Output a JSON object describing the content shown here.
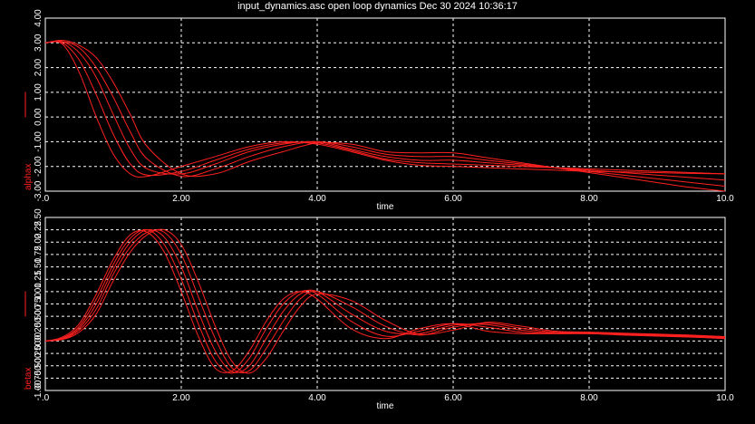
{
  "title": "input_dynamics.asc open loop dynamics  Dec 30 2024 10:36:17",
  "colors": {
    "background": "#000000",
    "axis": "#ffffff",
    "grid": "#ffffff",
    "trace": "#ff2020",
    "ylabel": "#ff2020",
    "text": "#ffffff"
  },
  "chart_data": [
    {
      "type": "line",
      "xlabel": "time",
      "ylabel": "alphax",
      "xlim": [
        0,
        10
      ],
      "ylim": [
        -3.0,
        4.0
      ],
      "xticks": [
        0,
        2,
        4,
        6,
        8,
        10
      ],
      "xtick_labels": [
        ".0",
        "2.00",
        "4.00",
        "6.00",
        "8.00",
        "10.0"
      ],
      "yticks": [
        -3.0,
        -2.0,
        -1.0,
        0.0,
        1.0,
        2.0,
        3.0,
        4.0
      ],
      "ytick_labels": [
        "-3.00",
        "-2.00",
        "-1.00",
        "0.00",
        "1.00",
        "2.00",
        "3.00",
        "4.00"
      ],
      "grid": true,
      "series": [
        {
          "x": [
            0,
            0.25,
            0.5,
            0.75,
            1,
            1.25,
            1.5,
            2,
            2.5,
            3,
            3.5,
            4,
            4.5,
            5,
            5.5,
            6,
            6.5,
            7,
            7.5,
            8,
            8.5,
            9,
            9.5,
            10
          ],
          "y": [
            3.0,
            2.95,
            1.8,
            0.0,
            -1.5,
            -2.3,
            -2.4,
            -2.0,
            -1.6,
            -1.2,
            -1.0,
            -1.1,
            -1.4,
            -1.75,
            -1.95,
            -2.0,
            -2.05,
            -2.1,
            -2.15,
            -2.2,
            -2.22,
            -2.25,
            -2.28,
            -2.3
          ]
        },
        {
          "x": [
            0,
            0.25,
            0.5,
            0.75,
            1,
            1.25,
            1.5,
            2,
            2.5,
            3,
            3.5,
            4,
            4.5,
            5,
            5.5,
            6,
            6.5,
            7,
            7.5,
            8,
            8.5,
            9,
            9.5,
            10
          ],
          "y": [
            3.0,
            3.0,
            2.3,
            0.9,
            -0.7,
            -1.9,
            -2.35,
            -2.2,
            -1.75,
            -1.3,
            -1.05,
            -1.05,
            -1.35,
            -1.7,
            -1.85,
            -1.9,
            -1.95,
            -2.0,
            -2.05,
            -2.1,
            -2.15,
            -2.2,
            -2.25,
            -2.3
          ]
        },
        {
          "x": [
            0,
            0.25,
            0.5,
            0.75,
            1,
            1.25,
            1.5,
            2,
            2.5,
            3,
            3.5,
            4,
            4.5,
            5,
            5.5,
            6,
            6.5,
            7,
            7.5,
            8,
            8.5,
            9,
            9.5,
            10
          ],
          "y": [
            3.0,
            3.05,
            2.6,
            1.6,
            0.1,
            -1.3,
            -2.1,
            -2.3,
            -1.9,
            -1.4,
            -1.1,
            -1.0,
            -1.3,
            -1.6,
            -1.75,
            -1.75,
            -1.85,
            -1.95,
            -2.05,
            -2.15,
            -2.25,
            -2.35,
            -2.45,
            -2.55
          ]
        },
        {
          "x": [
            0,
            0.25,
            0.5,
            0.75,
            1,
            1.25,
            1.5,
            2,
            2.5,
            3,
            3.5,
            4,
            4.5,
            5,
            5.5,
            6,
            6.5,
            7,
            7.5,
            8,
            8.5,
            9,
            9.5,
            10
          ],
          "y": [
            3.0,
            3.05,
            2.8,
            2.0,
            0.8,
            -0.6,
            -1.7,
            -2.4,
            -2.1,
            -1.6,
            -1.2,
            -1.0,
            -1.2,
            -1.5,
            -1.6,
            -1.6,
            -1.75,
            -1.9,
            -2.05,
            -2.2,
            -2.35,
            -2.5,
            -2.65,
            -2.8
          ]
        },
        {
          "x": [
            0,
            0.25,
            0.5,
            0.75,
            1,
            1.25,
            1.5,
            2,
            2.5,
            3,
            3.5,
            4,
            4.5,
            5,
            5.5,
            6,
            6.5,
            7,
            7.5,
            8,
            8.5,
            9,
            9.5,
            10
          ],
          "y": [
            3.0,
            3.1,
            2.9,
            2.4,
            1.4,
            0.1,
            -1.2,
            -2.3,
            -2.3,
            -1.8,
            -1.4,
            -1.05,
            -1.1,
            -1.4,
            -1.45,
            -1.45,
            -1.65,
            -1.85,
            -2.05,
            -2.25,
            -2.45,
            -2.65,
            -2.85,
            -3.0
          ]
        }
      ]
    },
    {
      "type": "line",
      "xlabel": "time",
      "ylabel": "betax",
      "xlim": [
        0,
        10
      ],
      "ylim": [
        -1.0,
        2.5
      ],
      "xticks": [
        0,
        2,
        4,
        6,
        8,
        10
      ],
      "xtick_labels": [
        ".0",
        "2.00",
        "4.00",
        "6.00",
        "8.00",
        "10.0"
      ],
      "yticks": [
        -1.0,
        -0.75,
        -0.5,
        -0.25,
        0.0,
        0.25,
        0.5,
        0.75,
        1.0,
        1.25,
        1.5,
        1.75,
        2.0,
        2.25,
        2.5
      ],
      "ytick_labels": [
        "-1.00",
        "-0.750",
        "-0.500",
        "-0.250",
        "0.00",
        "0.250",
        "0.500",
        "0.750",
        "1.00",
        "1.25",
        "1.50",
        "1.75",
        "2.00",
        "2.25",
        "2.50"
      ],
      "grid": true,
      "series": [
        {
          "x": [
            0,
            0.25,
            0.5,
            0.75,
            1,
            1.25,
            1.5,
            1.75,
            2,
            2.25,
            2.5,
            2.75,
            3,
            3.25,
            3.5,
            3.75,
            4,
            4.5,
            5,
            5.5,
            6,
            6.5,
            7,
            7.5,
            8,
            8.5,
            9,
            9.5,
            10
          ],
          "y": [
            0,
            0.08,
            0.35,
            0.95,
            1.65,
            2.15,
            2.2,
            1.8,
            1.0,
            0.1,
            -0.55,
            -0.6,
            -0.2,
            0.4,
            0.85,
            1.0,
            0.85,
            0.25,
            0.05,
            0.25,
            0.35,
            0.2,
            0.15,
            0.15,
            0.15,
            0.12,
            0.1,
            0.08,
            0.05
          ]
        },
        {
          "x": [
            0,
            0.25,
            0.5,
            0.75,
            1,
            1.25,
            1.5,
            1.75,
            2,
            2.25,
            2.5,
            2.75,
            3,
            3.25,
            3.5,
            3.75,
            4,
            4.5,
            5,
            5.5,
            6,
            6.5,
            7,
            7.5,
            8,
            8.5,
            9,
            9.5,
            10
          ],
          "y": [
            0,
            0.06,
            0.3,
            0.85,
            1.55,
            2.08,
            2.25,
            1.95,
            1.25,
            0.35,
            -0.4,
            -0.65,
            -0.35,
            0.25,
            0.75,
            1.0,
            0.95,
            0.4,
            0.1,
            0.2,
            0.35,
            0.28,
            0.18,
            0.15,
            0.15,
            0.13,
            0.11,
            0.09,
            0.06
          ]
        },
        {
          "x": [
            0,
            0.25,
            0.5,
            0.75,
            1,
            1.25,
            1.5,
            1.75,
            2,
            2.25,
            2.5,
            2.75,
            3,
            3.25,
            3.5,
            3.75,
            4,
            4.5,
            5,
            5.5,
            6,
            6.5,
            7,
            7.5,
            8,
            8.5,
            9,
            9.5,
            10
          ],
          "y": [
            0,
            0.05,
            0.26,
            0.75,
            1.45,
            2.0,
            2.25,
            2.1,
            1.5,
            0.6,
            -0.2,
            -0.62,
            -0.5,
            0.05,
            0.6,
            0.95,
            1.0,
            0.55,
            0.2,
            0.15,
            0.32,
            0.33,
            0.22,
            0.16,
            0.16,
            0.14,
            0.12,
            0.1,
            0.07
          ]
        },
        {
          "x": [
            0,
            0.25,
            0.5,
            0.75,
            1,
            1.25,
            1.5,
            1.75,
            2,
            2.25,
            2.5,
            2.75,
            3,
            3.25,
            3.5,
            3.75,
            4,
            4.5,
            5,
            5.5,
            6,
            6.5,
            7,
            7.5,
            8,
            8.5,
            9,
            9.5,
            10
          ],
          "y": [
            0,
            0.04,
            0.22,
            0.65,
            1.35,
            1.9,
            2.2,
            2.2,
            1.75,
            0.9,
            0.05,
            -0.55,
            -0.6,
            -0.15,
            0.4,
            0.85,
            1.0,
            0.7,
            0.3,
            0.12,
            0.28,
            0.36,
            0.26,
            0.18,
            0.17,
            0.15,
            0.13,
            0.11,
            0.08
          ]
        },
        {
          "x": [
            0,
            0.25,
            0.5,
            0.75,
            1,
            1.25,
            1.5,
            1.75,
            2,
            2.25,
            2.5,
            2.75,
            3,
            3.25,
            3.5,
            3.75,
            4,
            4.5,
            5,
            5.5,
            6,
            6.5,
            7,
            7.5,
            8,
            8.5,
            9,
            9.5,
            10
          ],
          "y": [
            0,
            0.03,
            0.18,
            0.55,
            1.22,
            1.8,
            2.15,
            2.25,
            1.95,
            1.2,
            0.3,
            -0.42,
            -0.65,
            -0.35,
            0.2,
            0.7,
            0.95,
            0.82,
            0.42,
            0.14,
            0.22,
            0.38,
            0.3,
            0.2,
            0.18,
            0.16,
            0.14,
            0.12,
            0.09
          ]
        }
      ]
    }
  ]
}
